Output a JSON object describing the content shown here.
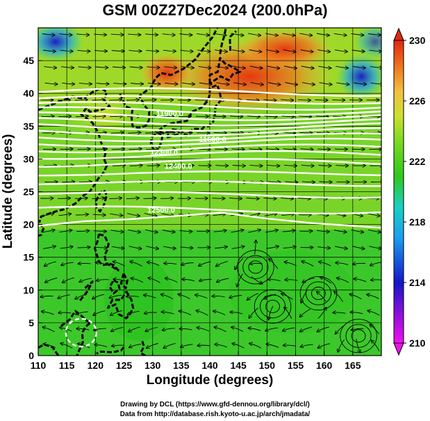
{
  "title": "GSM 00Z27Dec2024 (200.0hPa)",
  "x_axis": {
    "label": "Longitude (degrees)",
    "range": [
      110,
      170
    ],
    "ticks": [
      "110",
      "115",
      "120",
      "125",
      "130",
      "135",
      "140",
      "145",
      "150",
      "155",
      "160",
      "165"
    ]
  },
  "y_axis": {
    "label": "Latitude  (degrees)",
    "range": [
      0,
      50
    ],
    "ticks": [
      "0",
      "5",
      "10",
      "15",
      "20",
      "25",
      "30",
      "35",
      "40",
      "45"
    ]
  },
  "colorbar": {
    "range": [
      210,
      230
    ],
    "ticks": [
      "210",
      "214",
      "218",
      "222",
      "226",
      "230"
    ],
    "colors": [
      "#ee11ee",
      "#1515c8",
      "#1aa0ee",
      "#19d0c0",
      "#2fc81e",
      "#a8e020",
      "#f2d040",
      "#f07820",
      "#e02810"
    ]
  },
  "contour_labels": [
    {
      "text": "11600.0",
      "lon": 140.5,
      "lat": 32.6
    },
    {
      "text": "11900.0",
      "lon": 133,
      "lat": 36.5
    },
    {
      "text": "12300.0",
      "lon": 132,
      "lat": 30.6
    },
    {
      "text": "12400.0",
      "lon": 134.5,
      "lat": 28.5
    },
    {
      "text": "12500.0",
      "lon": 131.5,
      "lat": 21.8
    }
  ],
  "credits": {
    "line1": "Drawing by DCL (https://www.gfd-dennou.org/library/dcl/)",
    "line2": "Data from http://database.rish.kyoto-u.ac.jp/arch/jmadata/"
  }
}
